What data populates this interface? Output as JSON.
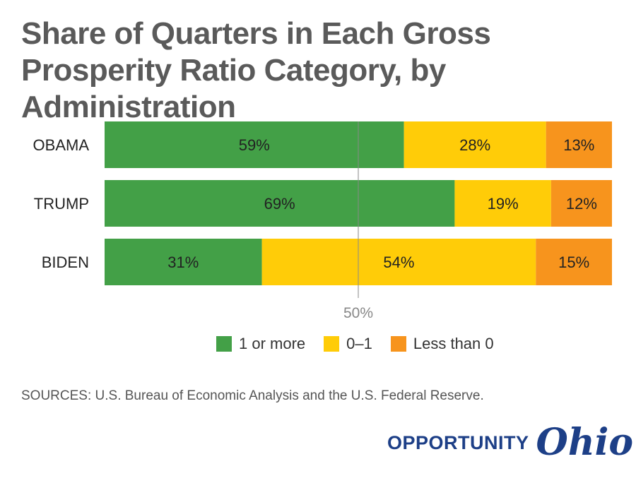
{
  "title": "Share of Quarters in Each Gross Prosperity Ratio Category, by Administration",
  "colors": {
    "green": "#43a047",
    "yellow": "#ffcc08",
    "orange": "#f7941d"
  },
  "chart_data": {
    "type": "bar",
    "orientation": "horizontal",
    "stacked": true,
    "categories": [
      "OBAMA",
      "TRUMP",
      "BIDEN"
    ],
    "series": [
      {
        "name": "1 or more",
        "color": "#43a047",
        "values": [
          59,
          69,
          31
        ],
        "labels": [
          "59%",
          "69%",
          "31%"
        ]
      },
      {
        "name": "0–1",
        "color": "#ffcc08",
        "values": [
          28,
          19,
          54
        ],
        "labels": [
          "28%",
          "19%",
          "54%"
        ]
      },
      {
        "name": "Less than 0",
        "color": "#f7941d",
        "values": [
          13,
          12,
          15
        ],
        "labels": [
          "13%",
          "12%",
          "15%"
        ]
      }
    ],
    "xlim": [
      0,
      100
    ],
    "reference_line": {
      "value": 50,
      "label": "50%"
    },
    "legend_position": "bottom"
  },
  "legend": [
    {
      "label": "1 or more",
      "color": "#43a047"
    },
    {
      "label": "0–1",
      "color": "#ffcc08"
    },
    {
      "label": "Less than 0",
      "color": "#f7941d"
    }
  ],
  "source": "SOURCES: U.S. Bureau of Economic Analysis and the U.S. Federal Reserve.",
  "logo": {
    "word": "OPPORTUNITY",
    "script": "Ohio"
  }
}
